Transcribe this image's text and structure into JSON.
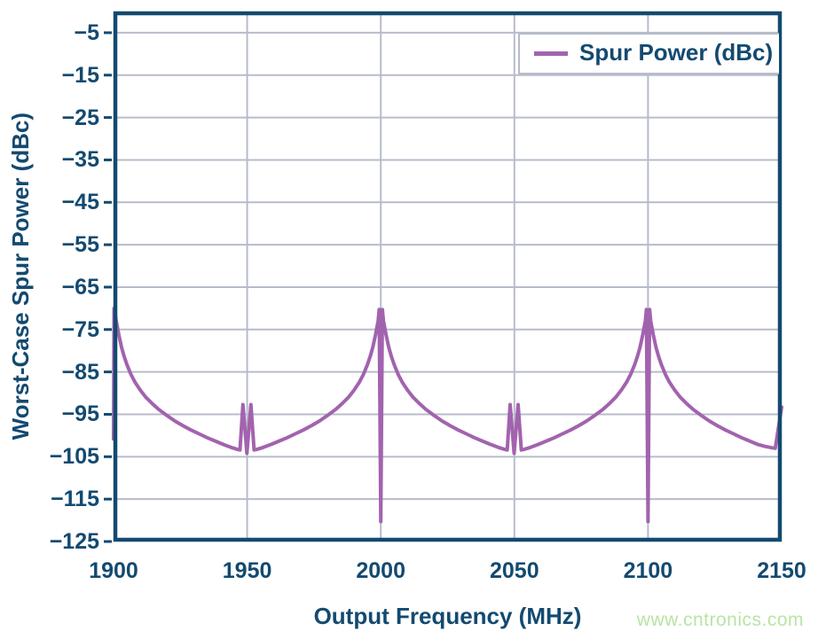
{
  "page": {
    "watermark": "www.cntronics.com",
    "background": "#ffffff"
  },
  "chart_data": {
    "type": "line",
    "title": "",
    "xlabel": "Output Frequency (MHz)",
    "ylabel": "Worst-Case Spur Power (dBc)",
    "xlim": [
      1900,
      2150
    ],
    "ylim": [
      -125,
      0
    ],
    "x_ticks": [
      1900,
      1950,
      2000,
      2050,
      2100,
      2150
    ],
    "y_ticks": [
      -5,
      -15,
      -25,
      -35,
      -45,
      -55,
      -65,
      -75,
      -85,
      -95,
      -105,
      -115,
      -125
    ],
    "grid": true,
    "legend": {
      "position": "top-right",
      "entries": [
        {
          "label": "Spur Power (dBc)",
          "color": "#a263ae"
        }
      ]
    },
    "colors": {
      "axis": "#134a70",
      "text": "#134a70",
      "grid": "#b7bccb",
      "accent": "#a263ae",
      "watermark": "#b9e4a5"
    },
    "annotations": {
      "peaks_dbc": {
        "at_MHz": [
          1900,
          2000,
          2100
        ],
        "value": -70
      },
      "notches_dbc": {
        "at_MHz": [
          2000,
          2100
        ],
        "value": -120
      },
      "twin_spurs_dbc": {
        "at_MHz": [
          1950,
          2050,
          2150
        ],
        "value": -93
      },
      "valley_floor_dbc": -103.5
    },
    "series": [
      {
        "name": "Spur Power (dBc)",
        "color": "#a263ae",
        "points": [
          [
            1900,
            -100.8
          ],
          [
            1900.2,
            -70
          ],
          [
            1901,
            -73
          ],
          [
            1902,
            -76.3
          ],
          [
            1903,
            -79.2
          ],
          [
            1904,
            -81.4
          ],
          [
            1905,
            -83.3
          ],
          [
            1906.5,
            -85.6
          ],
          [
            1908,
            -87.4
          ],
          [
            1910,
            -89.3
          ],
          [
            1912,
            -90.9
          ],
          [
            1914.5,
            -92.5
          ],
          [
            1917,
            -93.9
          ],
          [
            1920,
            -95.3
          ],
          [
            1923,
            -96.6
          ],
          [
            1926,
            -97.7
          ],
          [
            1929,
            -98.7
          ],
          [
            1932,
            -99.6
          ],
          [
            1935,
            -100.5
          ],
          [
            1938,
            -101.3
          ],
          [
            1941,
            -102.1
          ],
          [
            1944,
            -102.8
          ],
          [
            1946.5,
            -103.3
          ],
          [
            1947.3,
            -103.4
          ],
          [
            1948.4,
            -92.7
          ],
          [
            1949.9,
            -104.2
          ],
          [
            1951.4,
            -92.7
          ],
          [
            1952.6,
            -103.4
          ],
          [
            1953.5,
            -103.3
          ],
          [
            1956,
            -102.8
          ],
          [
            1959,
            -102.1
          ],
          [
            1962,
            -101.3
          ],
          [
            1965,
            -100.5
          ],
          [
            1968,
            -99.6
          ],
          [
            1971,
            -98.7
          ],
          [
            1974,
            -97.7
          ],
          [
            1977,
            -96.6
          ],
          [
            1980,
            -95.3
          ],
          [
            1983,
            -93.9
          ],
          [
            1985.5,
            -92.5
          ],
          [
            1988,
            -90.9
          ],
          [
            1990,
            -89.3
          ],
          [
            1992,
            -87.4
          ],
          [
            1993.5,
            -85.6
          ],
          [
            1995,
            -83.3
          ],
          [
            1996,
            -81.4
          ],
          [
            1997,
            -79.2
          ],
          [
            1998,
            -76.3
          ],
          [
            1999,
            -73
          ],
          [
            1999.4,
            -70.3
          ],
          [
            2000,
            -120.3
          ],
          [
            2000.6,
            -70.3
          ],
          [
            2001,
            -73
          ],
          [
            2002,
            -76.3
          ],
          [
            2003,
            -79.2
          ],
          [
            2004,
            -81.4
          ],
          [
            2005,
            -83.3
          ],
          [
            2006.5,
            -85.6
          ],
          [
            2008,
            -87.4
          ],
          [
            2010,
            -89.3
          ],
          [
            2012,
            -90.9
          ],
          [
            2014.5,
            -92.5
          ],
          [
            2017,
            -93.9
          ],
          [
            2020,
            -95.3
          ],
          [
            2023,
            -96.6
          ],
          [
            2026,
            -97.7
          ],
          [
            2029,
            -98.7
          ],
          [
            2032,
            -99.6
          ],
          [
            2035,
            -100.5
          ],
          [
            2038,
            -101.3
          ],
          [
            2041,
            -102.1
          ],
          [
            2044,
            -102.8
          ],
          [
            2046.5,
            -103.3
          ],
          [
            2047.3,
            -103.4
          ],
          [
            2048.4,
            -92.7
          ],
          [
            2049.9,
            -104.2
          ],
          [
            2051.4,
            -92.7
          ],
          [
            2052.6,
            -103.4
          ],
          [
            2053.5,
            -103.3
          ],
          [
            2056,
            -102.8
          ],
          [
            2059,
            -102.1
          ],
          [
            2062,
            -101.3
          ],
          [
            2065,
            -100.5
          ],
          [
            2068,
            -99.6
          ],
          [
            2071,
            -98.7
          ],
          [
            2074,
            -97.7
          ],
          [
            2077,
            -96.6
          ],
          [
            2080,
            -95.3
          ],
          [
            2083,
            -93.9
          ],
          [
            2085.5,
            -92.5
          ],
          [
            2088,
            -90.9
          ],
          [
            2090,
            -89.3
          ],
          [
            2092,
            -87.4
          ],
          [
            2093.5,
            -85.6
          ],
          [
            2095,
            -83.3
          ],
          [
            2096,
            -81.4
          ],
          [
            2097,
            -79.2
          ],
          [
            2098,
            -76.3
          ],
          [
            2099,
            -73
          ],
          [
            2099.4,
            -70.3
          ],
          [
            2100,
            -120.3
          ],
          [
            2100.6,
            -70.3
          ],
          [
            2101,
            -73
          ],
          [
            2102,
            -76.3
          ],
          [
            2103,
            -79.2
          ],
          [
            2104,
            -81.4
          ],
          [
            2105,
            -83.3
          ],
          [
            2106.5,
            -85.6
          ],
          [
            2108,
            -87.4
          ],
          [
            2110,
            -89.3
          ],
          [
            2112,
            -90.9
          ],
          [
            2114.5,
            -92.5
          ],
          [
            2117,
            -93.9
          ],
          [
            2120,
            -95.3
          ],
          [
            2123,
            -96.6
          ],
          [
            2126,
            -97.7
          ],
          [
            2129,
            -98.7
          ],
          [
            2132,
            -99.6
          ],
          [
            2135,
            -100.5
          ],
          [
            2138,
            -101.3
          ],
          [
            2141,
            -102.1
          ],
          [
            2144,
            -102.6
          ],
          [
            2146.5,
            -102.9
          ],
          [
            2147.6,
            -103
          ],
          [
            2150,
            -93.3
          ]
        ]
      }
    ]
  }
}
